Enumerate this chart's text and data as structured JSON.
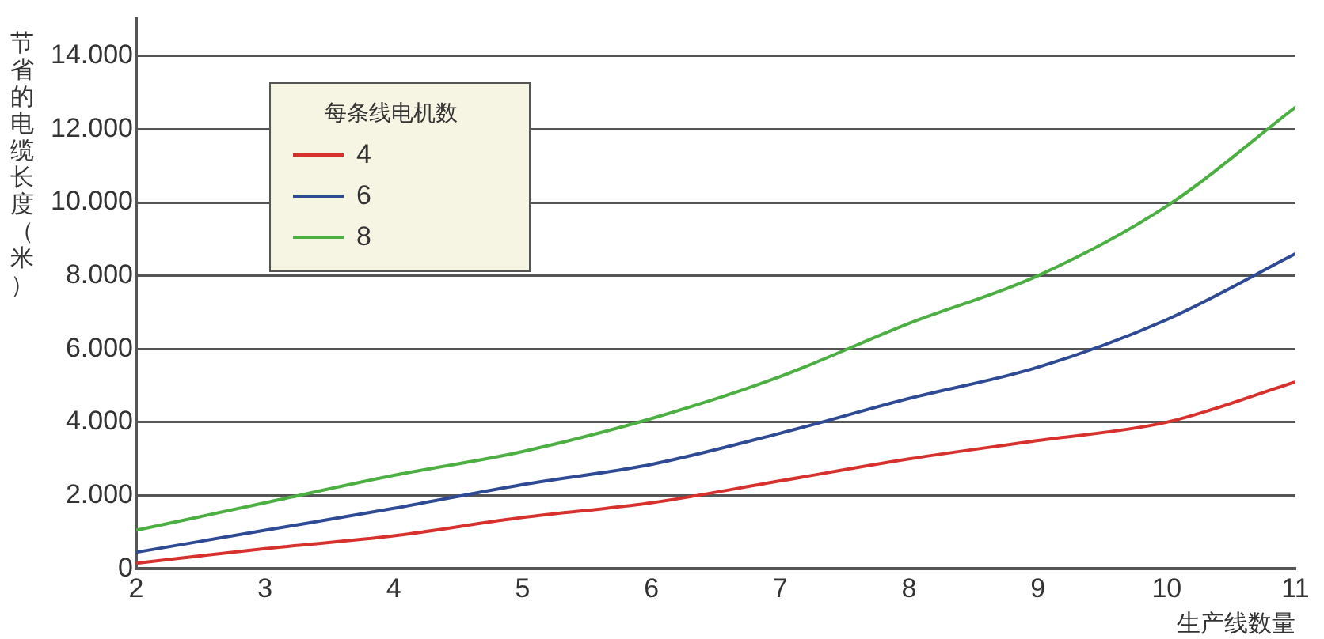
{
  "chart_data": {
    "type": "line",
    "xlabel": "生产线数量",
    "ylabel": "节省的电缆长度（米）",
    "legend_title": "每条线电机数",
    "x": [
      2,
      3,
      4,
      5,
      6,
      7,
      8,
      9,
      10,
      11
    ],
    "series": [
      {
        "name": "4",
        "color": "#d7312e",
        "values": [
          150,
          550,
          900,
          1400,
          1800,
          2400,
          3000,
          3500,
          4000,
          5100
        ]
      },
      {
        "name": "6",
        "color": "#2e4a94",
        "values": [
          450,
          1050,
          1650,
          2300,
          2850,
          3700,
          4650,
          5500,
          6800,
          8600
        ]
      },
      {
        "name": "8",
        "color": "#4caf42",
        "values": [
          1050,
          1800,
          2550,
          3200,
          4100,
          5250,
          6700,
          8000,
          9900,
          12600
        ]
      }
    ],
    "xlim": [
      2,
      11
    ],
    "xticks": [
      2,
      3,
      4,
      5,
      6,
      7,
      8,
      9,
      10,
      11
    ],
    "ylim": [
      0,
      15000
    ],
    "yticks": [
      0,
      {
        "value": 2000,
        "label": "2.000"
      },
      {
        "value": 4000,
        "label": "4.000"
      },
      {
        "value": 6000,
        "label": "6.000"
      },
      {
        "value": 8000,
        "label": "8.000"
      },
      {
        "value": 10000,
        "label": "10.000"
      },
      {
        "value": 12000,
        "label": "12.000"
      },
      {
        "value": 14000,
        "label": "14.000"
      }
    ],
    "grid": "y",
    "legend": "top left",
    "marker": "none",
    "line_style": "solid"
  }
}
